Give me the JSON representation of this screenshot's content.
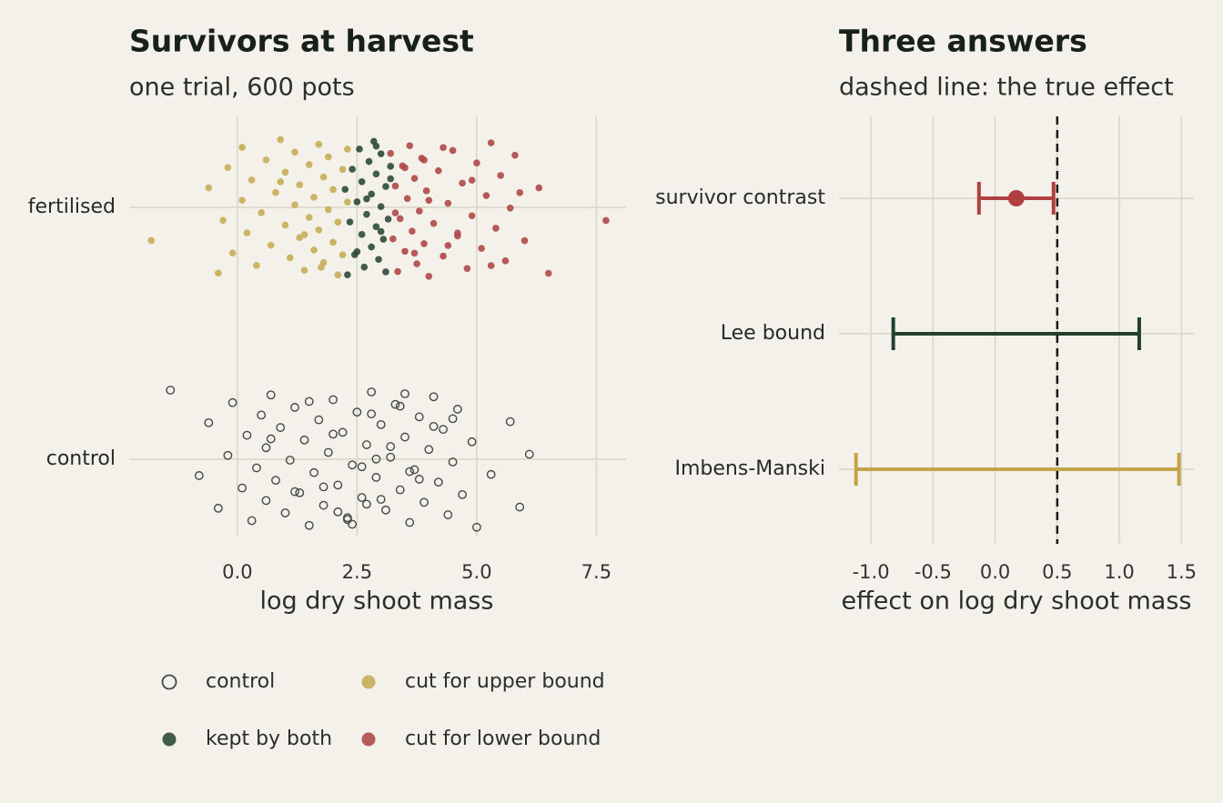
{
  "chart_data": [
    {
      "type": "strip",
      "title": "Survivors at harvest",
      "subtitle": "one trial, 600 pots",
      "xlabel": "log dry shoot mass",
      "categories": [
        "fertilised",
        "control"
      ],
      "xlim": [
        -2.26,
        8.12
      ],
      "xticks": [
        {
          "value": 0,
          "label": "0.0"
        },
        2.5,
        {
          "value": 5,
          "label": "5.0"
        },
        7.5
      ],
      "grid": true,
      "legend": "bottom",
      "series": [
        {
          "name": "control",
          "category": "control",
          "marker": "open",
          "color": "#454a45",
          "values": [
            -1.4,
            -0.8,
            -0.6,
            -0.4,
            -0.2,
            -0.1,
            0.1,
            0.2,
            0.3,
            0.4,
            0.5,
            0.6,
            0.6,
            0.7,
            0.8,
            0.9,
            1.0,
            1.1,
            1.2,
            1.3,
            1.4,
            1.5,
            1.6,
            1.7,
            1.8,
            1.9,
            2.0,
            2.1,
            2.2,
            2.3,
            2.4,
            2.5,
            2.6,
            2.7,
            2.8,
            2.9,
            3.0,
            3.1,
            3.2,
            3.3,
            3.4,
            3.5,
            3.6,
            3.7,
            3.8,
            3.9,
            4.0,
            4.1,
            4.2,
            4.3,
            4.4,
            4.5,
            4.6,
            4.7,
            4.9,
            5.0,
            5.3,
            5.7,
            5.9,
            6.1,
            1.5,
            1.8,
            2.0,
            2.3,
            2.6,
            2.8,
            3.0,
            3.2,
            3.5,
            3.8,
            4.1,
            2.1,
            2.9,
            3.4,
            1.2,
            0.7,
            2.4,
            3.6,
            4.5,
            2.7
          ]
        },
        {
          "name": "kept by both",
          "category": "fertilised",
          "marker": "filled",
          "color": "#2e4a38",
          "values": [
            2.25,
            2.3,
            2.35,
            2.4,
            2.45,
            2.5,
            2.55,
            2.6,
            2.6,
            2.65,
            2.7,
            2.75,
            2.8,
            2.8,
            2.85,
            2.9,
            2.9,
            2.95,
            3.0,
            3.0,
            3.05,
            3.1,
            3.1,
            3.15,
            3.2,
            2.5,
            2.7,
            2.9,
            3.0,
            3.2
          ]
        },
        {
          "name": "cut for upper bound",
          "category": "fertilised",
          "marker": "filled",
          "color": "#c7ad55",
          "values": [
            -1.8,
            -0.6,
            -0.4,
            -0.3,
            -0.2,
            -0.1,
            0.1,
            0.1,
            0.2,
            0.3,
            0.4,
            0.5,
            0.6,
            0.7,
            0.8,
            0.9,
            1.0,
            1.0,
            1.1,
            1.2,
            1.2,
            1.3,
            1.3,
            1.4,
            1.5,
            1.5,
            1.6,
            1.6,
            1.7,
            1.7,
            1.8,
            1.8,
            1.9,
            1.9,
            2.0,
            2.0,
            2.1,
            2.1,
            2.2,
            2.2,
            2.3,
            2.3,
            1.4,
            0.9,
            1.75
          ]
        },
        {
          "name": "cut for lower bound",
          "category": "fertilised",
          "marker": "filled",
          "color": "#b04848",
          "values": [
            3.2,
            3.25,
            3.3,
            3.35,
            3.4,
            3.45,
            3.5,
            3.55,
            3.6,
            3.65,
            3.7,
            3.75,
            3.8,
            3.85,
            3.9,
            3.95,
            4.0,
            4.1,
            4.2,
            4.3,
            4.4,
            4.5,
            4.6,
            4.7,
            4.8,
            4.9,
            5.0,
            5.1,
            5.2,
            5.3,
            5.4,
            5.5,
            5.6,
            5.7,
            5.8,
            6.0,
            6.3,
            6.5,
            7.7,
            3.5,
            3.7,
            4.0,
            4.3,
            4.6,
            4.9,
            5.3,
            3.3,
            3.9,
            4.4,
            5.9
          ]
        }
      ]
    },
    {
      "type": "interval",
      "title": "Three answers",
      "subtitle": "dashed line: the true effect",
      "xlabel": "effect on log dry shoot mass",
      "categories": [
        "survivor contrast",
        "Lee bound",
        "Imbens-Manski"
      ],
      "estimate": [
        0.17,
        null,
        null
      ],
      "lower": [
        -0.13,
        -0.82,
        -1.12
      ],
      "upper": [
        0.47,
        1.16,
        1.48
      ],
      "colors": [
        "#b04040",
        "#24402f",
        "#c2a548"
      ],
      "reference_line": 0.5,
      "xlim": [
        -1.257,
        1.6
      ],
      "xticks": [
        {
          "value": -1,
          "label": "-1.0"
        },
        -0.5,
        {
          "value": 0,
          "label": "0.0"
        },
        0.5,
        {
          "value": 1,
          "label": "1.0"
        },
        1.5
      ],
      "grid": true
    }
  ]
}
